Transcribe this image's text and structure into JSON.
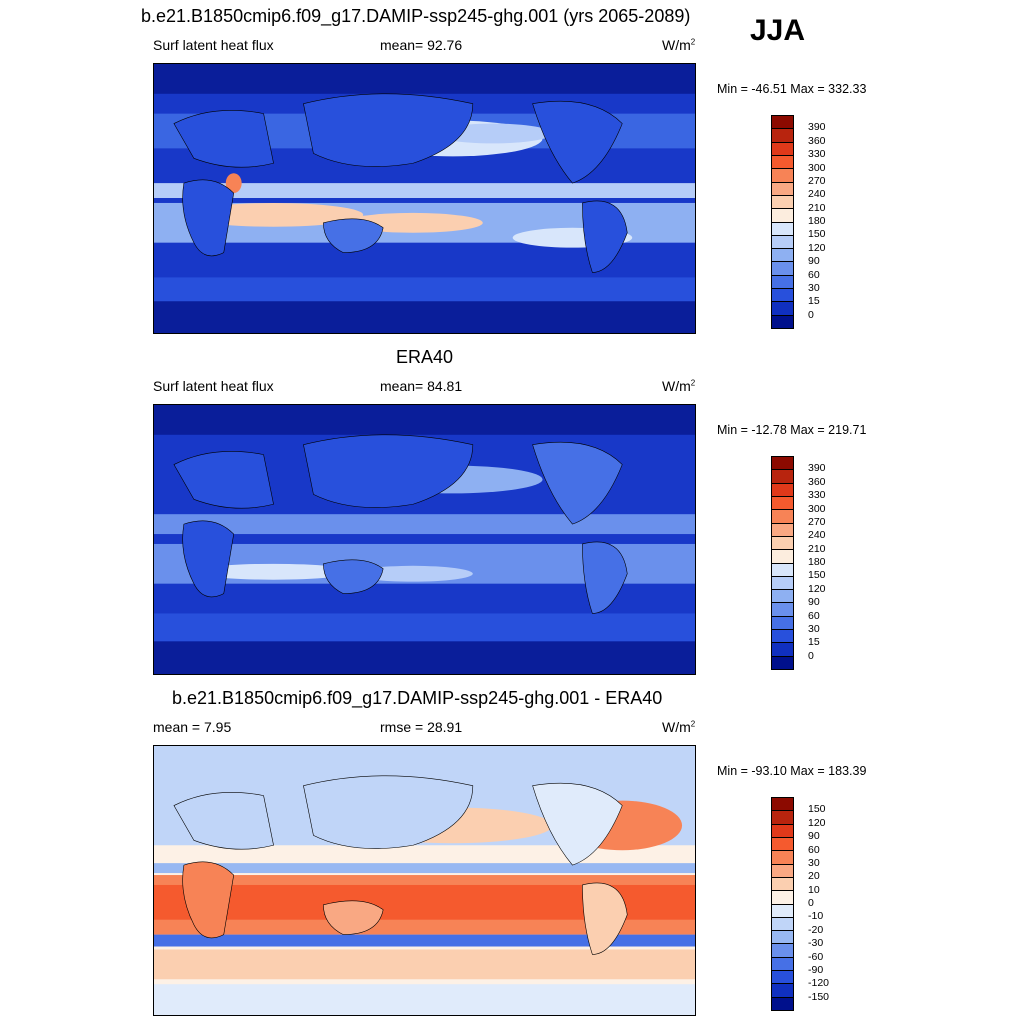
{
  "season": "JJA",
  "panels": [
    {
      "title": "b.e21.B1850cmip6.f09_g17.DAMIP-ssp245-ghg.001 (yrs 2065-2089)",
      "left_label": "Surf latent heat flux",
      "center_label": "mean=  92.76",
      "units": "W/m",
      "units_sup": "2",
      "minmax": "Min = -46.51 Max = 332.33",
      "colorbar_ticks": [
        "390",
        "360",
        "330",
        "300",
        "270",
        "240",
        "210",
        "180",
        "150",
        "120",
        "90",
        "60",
        "30",
        "15",
        "0"
      ]
    },
    {
      "title": "ERA40",
      "left_label": "Surf latent heat flux",
      "center_label": "mean=  84.81",
      "units": "W/m",
      "units_sup": "2",
      "minmax": "Min = -12.78 Max = 219.71",
      "colorbar_ticks": [
        "390",
        "360",
        "330",
        "300",
        "270",
        "240",
        "210",
        "180",
        "150",
        "120",
        "90",
        "60",
        "30",
        "15",
        "0"
      ]
    },
    {
      "title": "b.e21.B1850cmip6.f09_g17.DAMIP-ssp245-ghg.001 - ERA40",
      "left_label": "mean =   7.95",
      "center_label": "rmse =  28.91",
      "units": "W/m",
      "units_sup": "2",
      "minmax": "Min = -93.10 Max = 183.39",
      "colorbar_ticks": [
        "150",
        "120",
        "90",
        "60",
        "30",
        "20",
        "10",
        "0",
        "-10",
        "-20",
        "-30",
        "-60",
        "-90",
        "-120",
        "-150"
      ]
    }
  ],
  "colors": {
    "abs_scale": [
      "#8c0a00",
      "#b8240e",
      "#e0391a",
      "#f55a2e",
      "#f78356",
      "#f9a883",
      "#fbcfb0",
      "#fcedde",
      "#d8e6fb",
      "#b6cdf8",
      "#8eb0f2",
      "#6a90ec",
      "#4670e6",
      "#2850dc",
      "#1030c0",
      "#00108c"
    ],
    "diff_scale": [
      "#8c0a00",
      "#b8240e",
      "#e0391a",
      "#f55a2e",
      "#f78356",
      "#f9a883",
      "#fbcfb0",
      "#fdf1e6",
      "#e0ebfb",
      "#c0d5f8",
      "#98b8f2",
      "#6a90ec",
      "#4670e6",
      "#2850dc",
      "#1030c0",
      "#00108c"
    ],
    "land_outline": "#000000"
  }
}
